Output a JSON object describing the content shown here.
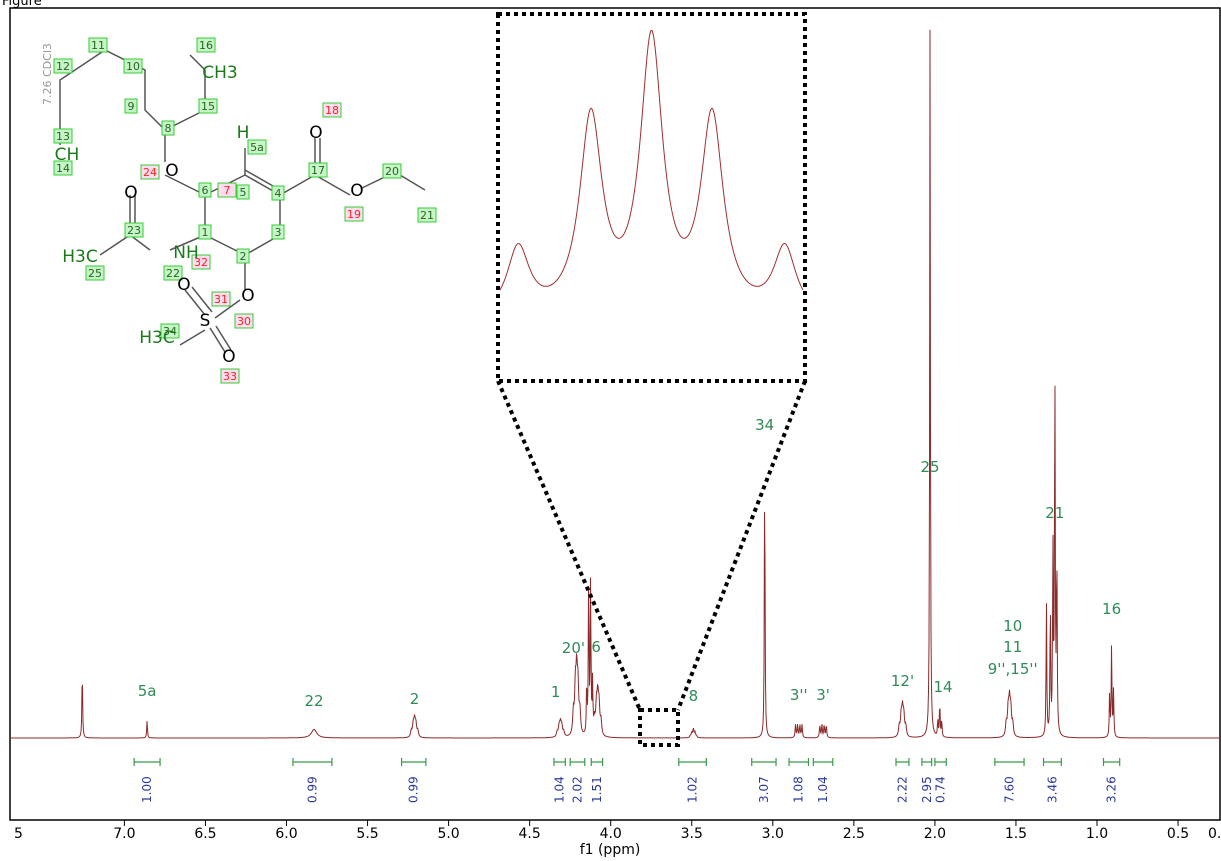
{
  "caption": "Figure",
  "solvent_label": "7.26 CDCl3",
  "colors": {
    "spectrum": "#8b2a2a",
    "peak_label": "#2e8b57",
    "integral_text": "#2b3a9a",
    "integral_bar": "#3a9a4a",
    "atom_box": "#33cc33",
    "atom_red": "#ff2020"
  },
  "chart_data": {
    "type": "line",
    "title": "",
    "xlabel": "f1 (ppm)",
    "ylabel": "",
    "xlim": [
      7.5,
      0.0
    ],
    "x_reversed": true,
    "grid": false,
    "xticks": [
      "7.0",
      "6.5",
      "6.0",
      "5.5",
      "5.0",
      "4.5",
      "4.0",
      "3.5",
      "3.0",
      "2.5",
      "2.0",
      "1.5",
      "1.0",
      "0.5"
    ],
    "xticks_partial": [
      "5",
      "0."
    ],
    "peaks": [
      {
        "ppm": 7.26,
        "height": 0.1,
        "kind": "singlet"
      },
      {
        "ppm": 6.86,
        "height": 0.025,
        "kind": "singlet"
      },
      {
        "ppm": 5.83,
        "height": 0.012,
        "kind": "broad"
      },
      {
        "ppm": 5.21,
        "height": 0.022,
        "kind": "multiplet"
      },
      {
        "ppm": 4.31,
        "height": 0.018,
        "kind": "multiplet"
      },
      {
        "ppm": 4.21,
        "height": 0.08,
        "kind": "multiplet"
      },
      {
        "ppm": 4.13,
        "height": 0.22,
        "kind": "quartet"
      },
      {
        "ppm": 4.08,
        "height": 0.05,
        "kind": "multiplet"
      },
      {
        "ppm": 3.49,
        "height": 0.012,
        "kind": "quintet"
      },
      {
        "ppm": 3.05,
        "height": 0.39,
        "kind": "singlet"
      },
      {
        "ppm": 2.84,
        "height": 0.018,
        "kind": "dd"
      },
      {
        "ppm": 2.69,
        "height": 0.018,
        "kind": "dd"
      },
      {
        "ppm": 2.2,
        "height": 0.035,
        "kind": "multiplet"
      },
      {
        "ppm": 2.03,
        "height": 1.0,
        "kind": "singlet"
      },
      {
        "ppm": 1.97,
        "height": 0.05,
        "kind": "triplet"
      },
      {
        "ppm": 1.54,
        "height": 0.045,
        "kind": "multiplet"
      },
      {
        "ppm": 1.26,
        "height": 0.53,
        "kind": "triplet"
      },
      {
        "ppm": 1.3,
        "height": 0.19,
        "kind": "doublet"
      },
      {
        "ppm": 0.91,
        "height": 0.13,
        "kind": "triplet"
      }
    ],
    "peak_labels": [
      {
        "text": "5a",
        "ppm": 6.86
      },
      {
        "text": "22",
        "ppm": 5.83
      },
      {
        "text": "2",
        "ppm": 5.21
      },
      {
        "text": "1",
        "ppm": 4.34
      },
      {
        "text": "20'",
        "ppm": 4.23
      },
      {
        "text": "6",
        "ppm": 4.09
      },
      {
        "text": "8",
        "ppm": 3.49
      },
      {
        "text": "34",
        "ppm": 3.05
      },
      {
        "text": "3''",
        "ppm": 2.84
      },
      {
        "text": "3'",
        "ppm": 2.69
      },
      {
        "text": "12'",
        "ppm": 2.2
      },
      {
        "text": "25",
        "ppm": 2.03
      },
      {
        "text": "14",
        "ppm": 1.95
      },
      {
        "text": "10",
        "ppm": 1.52
      },
      {
        "text": "11",
        "ppm": 1.52
      },
      {
        "text": "9'',15''",
        "ppm": 1.52
      },
      {
        "text": "21",
        "ppm": 1.26
      },
      {
        "text": "16",
        "ppm": 0.91
      }
    ],
    "integrals": [
      {
        "value": "1.00",
        "from": 6.94,
        "to": 6.78
      },
      {
        "value": "0.99",
        "from": 5.96,
        "to": 5.72
      },
      {
        "value": "0.99",
        "from": 5.29,
        "to": 5.14
      },
      {
        "value": "1.04",
        "from": 4.35,
        "to": 4.28
      },
      {
        "value": "2.02",
        "from": 4.25,
        "to": 4.16
      },
      {
        "value": "1.51",
        "from": 4.12,
        "to": 4.05
      },
      {
        "value": "1.02",
        "from": 3.58,
        "to": 3.41
      },
      {
        "value": "3.07",
        "from": 3.13,
        "to": 2.98
      },
      {
        "value": "1.08",
        "from": 2.9,
        "to": 2.78
      },
      {
        "value": "1.04",
        "from": 2.75,
        "to": 2.63
      },
      {
        "value": "2.22",
        "from": 2.24,
        "to": 2.16
      },
      {
        "value": "2.95",
        "from": 2.08,
        "to": 2.02
      },
      {
        "value": "0.74",
        "from": 2.0,
        "to": 1.93
      },
      {
        "value": "7.60",
        "from": 1.63,
        "to": 1.45
      },
      {
        "value": "3.46",
        "from": 1.33,
        "to": 1.22
      },
      {
        "value": "3.26",
        "from": 0.96,
        "to": 0.86
      }
    ],
    "inset": {
      "region": [
        3.58,
        3.41
      ],
      "lines": 5
    },
    "structure": {
      "green_labels": [
        "11",
        "10",
        "16",
        "12",
        "9",
        "15",
        "13",
        "8",
        "5a",
        "14",
        "17",
        "20",
        "6",
        "5",
        "4",
        "21",
        "23",
        "1",
        "3",
        "25",
        "22",
        "2",
        "34"
      ],
      "red_labels": [
        "18",
        "24",
        "7",
        "19",
        "32",
        "31",
        "30",
        "33"
      ],
      "atoms": [
        "CH3",
        "CH",
        "H",
        "O",
        "O",
        "O",
        "O",
        "NH",
        "H3C",
        "O",
        "O",
        "S",
        "H3C",
        "O"
      ]
    }
  }
}
